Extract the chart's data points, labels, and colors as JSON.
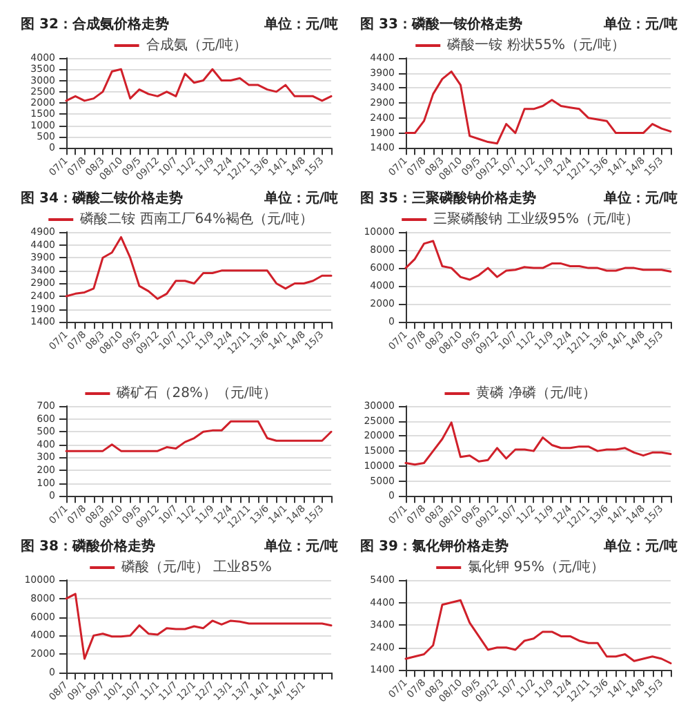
{
  "chart_data": [
    {
      "type": "line",
      "title": "图 32：合成氨价格走势",
      "subtitle": "单位：元/吨",
      "categories": [
        "07/1",
        null,
        "07/8",
        null,
        "08/3",
        null,
        "08/10",
        null,
        "09/5",
        null,
        "09/12",
        null,
        "10/7",
        null,
        "11/2",
        null,
        "11/9",
        null,
        "12/4",
        null,
        "12/11",
        null,
        "13/6",
        null,
        "14/1",
        null,
        "14/8",
        null,
        "15/3",
        null
      ],
      "series": [
        {
          "name": "合成氨（元/吨）",
          "color": "#d0202a",
          "values": [
            2100,
            2300,
            2100,
            2200,
            2500,
            3400,
            3500,
            2200,
            2600,
            2400,
            2300,
            2500,
            2300,
            3300,
            2900,
            3000,
            3500,
            3000,
            3000,
            3100,
            2800,
            2800,
            2600,
            2500,
            2800,
            2300,
            2300,
            2300,
            2100,
            2300
          ]
        }
      ],
      "ylim": [
        0,
        4000
      ],
      "yticks": [
        0,
        500,
        1000,
        1500,
        2000,
        2500,
        3000,
        3500,
        4000
      ],
      "grid": "y",
      "legend": "top",
      "marker": "none"
    },
    {
      "type": "line",
      "title": "图 33：磷酸一铵价格走势",
      "subtitle": "单位：元/吨",
      "categories": [
        "07/1",
        null,
        "07/8",
        null,
        "08/3",
        null,
        "08/10",
        null,
        "09/5",
        null,
        "09/12",
        null,
        "10/7",
        null,
        "11/2",
        null,
        "11/9",
        null,
        "12/4",
        null,
        "12/11",
        null,
        "13/6",
        null,
        "14/1",
        null,
        "14/8",
        null,
        "15/3",
        null
      ],
      "series": [
        {
          "name": "磷酸一铵 粉状55%（元/吨）",
          "color": "#d0202a",
          "values": [
            1900,
            1900,
            2300,
            3200,
            3700,
            3950,
            3500,
            1800,
            1700,
            1600,
            1550,
            2200,
            1900,
            2700,
            2700,
            2800,
            3000,
            2800,
            2750,
            2700,
            2400,
            2350,
            2300,
            1900,
            1900,
            1900,
            1900,
            2200,
            2050,
            1950
          ]
        }
      ],
      "ylim": [
        1400,
        4400
      ],
      "yticks": [
        1400,
        1900,
        2400,
        2900,
        3400,
        3900,
        4400
      ],
      "grid": "y",
      "legend": "top",
      "marker": "none"
    },
    {
      "type": "line",
      "title": "图 34：磷酸二铵价格走势",
      "subtitle": "单位：元/吨",
      "categories": [
        "07/1",
        null,
        "07/8",
        null,
        "08/3",
        null,
        "08/10",
        null,
        "09/5",
        null,
        "09/12",
        null,
        "10/7",
        null,
        "11/2",
        null,
        "11/9",
        null,
        "12/4",
        null,
        "12/11",
        null,
        "13/6",
        null,
        "14/1",
        null,
        "14/8",
        null,
        "15/3",
        null
      ],
      "series": [
        {
          "name": "磷酸二铵 西南工厂64%褐色（元/吨）",
          "color": "#d0202a",
          "values": [
            2400,
            2500,
            2550,
            2700,
            3900,
            4100,
            4700,
            3900,
            2800,
            2600,
            2300,
            2500,
            3000,
            3000,
            2900,
            3300,
            3300,
            3400,
            3400,
            3400,
            3400,
            3400,
            3400,
            2900,
            2700,
            2900,
            2900,
            3000,
            3200,
            3200
          ]
        }
      ],
      "ylim": [
        1400,
        4900
      ],
      "yticks": [
        1400,
        1900,
        2400,
        2900,
        3400,
        3900,
        4400,
        4900
      ],
      "grid": "y",
      "legend": "top",
      "marker": "none"
    },
    {
      "type": "line",
      "title": "图 35：三聚磷酸钠价格走势",
      "subtitle": "单位：元/吨",
      "categories": [
        "07/1",
        null,
        "07/8",
        null,
        "08/3",
        null,
        "08/10",
        null,
        "09/5",
        null,
        "09/12",
        null,
        "10/7",
        null,
        "11/2",
        null,
        "11/9",
        null,
        "12/4",
        null,
        "12/11",
        null,
        "13/6",
        null,
        "14/1",
        null,
        "14/8",
        null,
        "15/3",
        null
      ],
      "series": [
        {
          "name": "三聚磷酸钠 工业级95%（元/吨）",
          "color": "#d0202a",
          "values": [
            6000,
            7000,
            8700,
            9000,
            6200,
            6000,
            5000,
            4700,
            5200,
            6000,
            5000,
            5700,
            5800,
            6100,
            6000,
            6000,
            6500,
            6500,
            6200,
            6200,
            6000,
            6000,
            5700,
            5700,
            6000,
            6000,
            5800,
            5800,
            5800,
            5600
          ]
        }
      ],
      "ylim": [
        0,
        10000
      ],
      "yticks": [
        0,
        2000,
        4000,
        6000,
        8000,
        10000
      ],
      "grid": "y",
      "legend": "top",
      "marker": "none"
    },
    {
      "type": "line",
      "categories": [
        "07/1",
        null,
        "07/8",
        null,
        "08/3",
        null,
        "08/10",
        null,
        "09/5",
        null,
        "09/12",
        null,
        "10/7",
        null,
        "11/2",
        null,
        "11/9",
        null,
        "12/4",
        null,
        "12/11",
        null,
        "13/6",
        null,
        "14/1",
        null,
        "14/8",
        null,
        "15/3",
        null
      ],
      "series": [
        {
          "name": "磷矿石（28%）（元/吨）",
          "color": "#d0202a",
          "values": [
            350,
            350,
            350,
            350,
            350,
            400,
            350,
            350,
            350,
            350,
            350,
            380,
            370,
            420,
            450,
            500,
            510,
            510,
            580,
            580,
            580,
            580,
            450,
            430,
            430,
            430,
            430,
            430,
            430,
            500
          ]
        }
      ],
      "ylim": [
        0,
        700
      ],
      "yticks": [
        0,
        100,
        200,
        300,
        400,
        500,
        600,
        700
      ],
      "grid": "y",
      "legend": "top",
      "marker": "none"
    },
    {
      "type": "line",
      "categories": [
        "07/1",
        null,
        "07/8",
        null,
        "08/3",
        null,
        "08/10",
        null,
        "09/5",
        null,
        "09/12",
        null,
        "10/7",
        null,
        "11/2",
        null,
        "11/9",
        null,
        "12/4",
        null,
        "12/11",
        null,
        "13/6",
        null,
        "14/1",
        null,
        "14/8",
        null,
        "15/3",
        null
      ],
      "series": [
        {
          "name": "黄磷 净磷（元/吨）",
          "color": "#d0202a",
          "values": [
            11000,
            10500,
            11000,
            15000,
            19000,
            24500,
            13000,
            13500,
            11500,
            12000,
            16000,
            12500,
            15500,
            15500,
            15000,
            19500,
            17000,
            16000,
            16000,
            16500,
            16500,
            15000,
            15500,
            15500,
            16000,
            14500,
            13500,
            14500,
            14500,
            14000
          ]
        }
      ],
      "ylim": [
        0,
        30000
      ],
      "yticks": [
        0,
        5000,
        10000,
        15000,
        20000,
        25000,
        30000
      ],
      "grid": "y",
      "legend": "top",
      "marker": "none"
    },
    {
      "type": "line",
      "title": "图 38：磷酸价格走势",
      "subtitle": "单位：元/吨",
      "categories": [
        "08/7",
        null,
        "09/1",
        null,
        "09/7",
        null,
        "10/1",
        null,
        "10/7",
        null,
        "11/1",
        null,
        "11/7",
        null,
        "12/1",
        null,
        "12/7",
        null,
        "13/1",
        null,
        "13/7",
        null,
        "14/1",
        null,
        "14/7",
        null,
        "15/1",
        null,
        null,
        null
      ],
      "series": [
        {
          "name": "磷酸（元/吨） 工业85%",
          "color": "#d0202a",
          "values": [
            8000,
            8500,
            1500,
            4000,
            4200,
            3900,
            3900,
            4000,
            5100,
            4200,
            4100,
            4800,
            4700,
            4700,
            5000,
            4800,
            5600,
            5200,
            5600,
            5500,
            5300,
            5300,
            5300,
            5300,
            5300,
            5300,
            5300,
            5300,
            5300,
            5100
          ]
        }
      ],
      "ylim": [
        0,
        10000
      ],
      "yticks": [
        0,
        2000,
        4000,
        6000,
        8000,
        10000
      ],
      "grid": "y",
      "legend": "top",
      "marker": "none"
    },
    {
      "type": "line",
      "title": "图 39：氯化钾价格走势",
      "subtitle": "单位：元/吨",
      "categories": [
        "07/1",
        null,
        "07/8",
        null,
        "08/3",
        null,
        "08/10",
        null,
        "09/5",
        null,
        "09/12",
        null,
        "10/7",
        null,
        "11/2",
        null,
        "11/9",
        null,
        "12/4",
        null,
        "12/11",
        null,
        "13/6",
        null,
        "14/1",
        null,
        "14/8",
        null,
        "15/3",
        null
      ],
      "series": [
        {
          "name": "氯化钾 95%（元/吨）",
          "color": "#d0202a",
          "values": [
            1900,
            2000,
            2100,
            2500,
            4300,
            4400,
            4500,
            3500,
            2900,
            2300,
            2400,
            2400,
            2300,
            2700,
            2800,
            3100,
            3100,
            2900,
            2900,
            2700,
            2600,
            2600,
            2000,
            2000,
            2100,
            1800,
            1900,
            2000,
            1900,
            1700
          ]
        }
      ],
      "ylim": [
        1400,
        5400
      ],
      "yticks": [
        1400,
        2400,
        3400,
        4400,
        5400
      ],
      "grid": "y",
      "legend": "top",
      "marker": "none"
    }
  ]
}
